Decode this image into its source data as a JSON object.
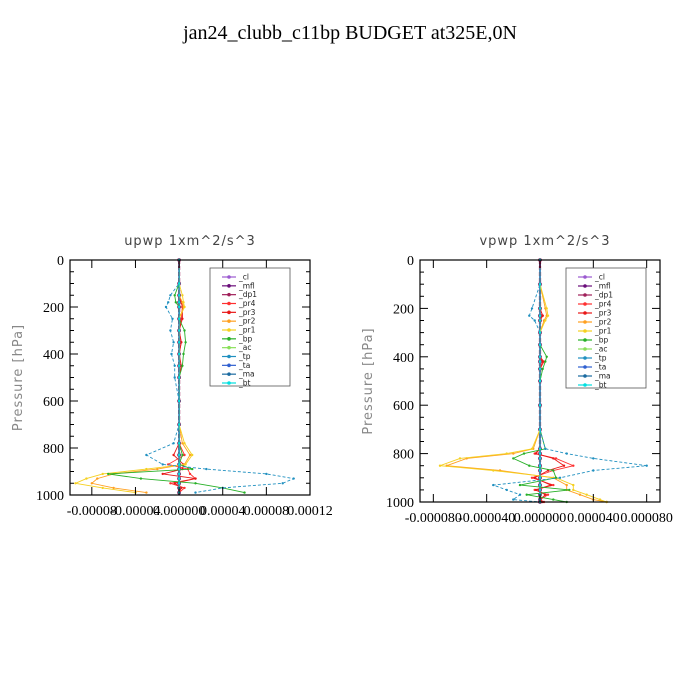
{
  "title": "jan24_clubb_c11bp  BUDGET at325E,0N",
  "legend": [
    {
      "name": "_cl",
      "color": "#9b59d0"
    },
    {
      "name": "_mfl",
      "color": "#6a0d7a"
    },
    {
      "name": "_dp1",
      "color": "#a0205a"
    },
    {
      "name": "_pr4",
      "color": "#ff3030"
    },
    {
      "name": "_pr3",
      "color": "#e81818"
    },
    {
      "name": "_pr2",
      "color": "#ffa020"
    },
    {
      "name": "_pr1",
      "color": "#f5d020"
    },
    {
      "name": "_bp",
      "color": "#27b027"
    },
    {
      "name": "_ac",
      "color": "#8ae05a"
    },
    {
      "name": "_tp",
      "color": "#2090c0"
    },
    {
      "name": "_ta",
      "color": "#3060d0"
    },
    {
      "name": "_ma",
      "color": "#1a6aa0"
    },
    {
      "name": "_bt",
      "color": "#00e0e0"
    }
  ],
  "chart_data": [
    {
      "type": "line",
      "title": "upwp   1xm^2/s^3",
      "xlabel": "",
      "ylabel": "Pressure [hPa]",
      "xlim": [
        -0.0001,
        0.00012
      ],
      "ylim": [
        1000,
        0
      ],
      "xtick_labels": [
        "-0.00008",
        "-0.00004",
        "0.000000",
        "0.00004",
        "0.00008",
        "0.00012"
      ],
      "xtick_values": [
        -8e-05,
        -4e-05,
        0,
        4e-05,
        8e-05,
        0.00012
      ],
      "ytick_values": [
        0,
        200,
        400,
        600,
        800,
        1000
      ],
      "y": [
        0,
        100,
        150,
        180,
        200,
        250,
        300,
        350,
        400,
        450,
        500,
        600,
        700,
        780,
        830,
        870,
        890,
        910,
        930,
        950,
        970,
        990
      ],
      "series": [
        {
          "name": "_cl",
          "values": [
            0,
            0,
            0,
            0,
            0,
            0,
            0,
            0,
            0,
            0,
            0,
            0,
            0,
            0,
            0,
            0,
            0,
            0,
            0,
            0,
            0,
            0
          ]
        },
        {
          "name": "_mfl",
          "values": [
            0,
            0,
            0,
            0,
            0,
            0,
            0,
            0,
            0,
            0,
            0,
            0,
            0,
            0,
            0,
            0,
            0,
            0,
            0,
            0,
            0,
            0
          ]
        },
        {
          "name": "_dp1",
          "values": [
            0,
            0,
            0,
            0,
            0,
            0,
            0,
            0,
            0,
            0,
            0,
            0,
            0,
            0,
            0,
            0,
            0,
            0,
            0,
            0,
            0,
            0
          ]
        },
        {
          "name": "_pr4",
          "values": [
            0,
            0,
            0,
            2e-06,
            3e-06,
            2e-06,
            0,
            2e-06,
            0,
            0,
            0,
            0,
            0,
            0,
            5e-06,
            -1e-05,
            8e-06,
            1e-05,
            1.5e-05,
            -8e-06,
            5e-06,
            0
          ]
        },
        {
          "name": "_pr3",
          "values": [
            0,
            0,
            0,
            2e-06,
            3e-06,
            3e-06,
            0,
            2e-06,
            0,
            2e-06,
            0,
            0,
            0,
            0,
            -5e-06,
            4e-06,
            3e-06,
            -1.5e-05,
            1.5e-05,
            -4e-06,
            2e-06,
            0
          ]
        },
        {
          "name": "_pr2",
          "values": [
            0,
            0,
            0,
            3e-06,
            4e-06,
            0,
            0,
            0,
            0,
            0,
            0,
            0,
            0,
            3e-06,
            1e-05,
            5e-06,
            -2e-05,
            -6e-05,
            -7.5e-05,
            -8e-05,
            -6e-05,
            -3e-05
          ]
        },
        {
          "name": "_pr1",
          "values": [
            0,
            0,
            3e-06,
            4e-06,
            5e-06,
            0,
            0,
            0,
            0,
            0,
            0,
            0,
            0,
            5e-06,
            1.2e-05,
            6e-06,
            -3e-05,
            -7e-05,
            -8.5e-05,
            -9.5e-05,
            -7e-05,
            -4e-05
          ]
        },
        {
          "name": "_bp",
          "values": [
            0,
            0,
            -4e-06,
            -3e-06,
            0,
            0,
            5e-06,
            6e-06,
            4e-06,
            3e-06,
            0,
            0,
            0,
            0,
            3e-06,
            0,
            1.2e-05,
            -6.5e-05,
            -3.5e-05,
            1.5e-05,
            4e-05,
            6e-05
          ]
        },
        {
          "name": "_ac",
          "values": [
            0,
            0,
            0,
            0,
            0,
            0,
            0,
            0,
            0,
            0,
            0,
            0,
            0,
            0,
            0,
            0,
            0,
            0,
            0,
            0,
            0,
            0
          ]
        },
        {
          "name": "_tp",
          "values": [
            0,
            0,
            -8e-06,
            -1e-05,
            -1.2e-05,
            -6e-06,
            -8e-06,
            -5e-06,
            -7e-06,
            -4e-06,
            -4e-06,
            0,
            0,
            -5e-06,
            -3e-05,
            -1.5e-05,
            2.5e-05,
            8e-05,
            0.000105,
            9.5e-05,
            4e-05,
            1.5e-05
          ]
        },
        {
          "name": "_ta",
          "values": [
            0,
            0,
            0,
            0,
            0,
            0,
            0,
            0,
            0,
            0,
            0,
            0,
            0,
            0,
            0,
            0,
            0,
            0,
            0,
            0,
            0,
            0
          ]
        },
        {
          "name": "_ma",
          "values": [
            0,
            0,
            0,
            0,
            0,
            0,
            0,
            0,
            0,
            0,
            0,
            0,
            0,
            0,
            0,
            0,
            0,
            0,
            0,
            0,
            0,
            0
          ]
        },
        {
          "name": "_bt",
          "values": [
            0,
            0,
            0,
            0,
            0,
            0,
            0,
            0,
            0,
            0,
            0,
            0,
            0,
            0,
            0,
            0,
            0,
            0,
            0,
            0,
            0,
            0
          ]
        }
      ]
    },
    {
      "type": "line",
      "title": "vpwp   1xm^2/s^3",
      "xlabel": "",
      "ylabel": "Pressure [hPa]",
      "xlim": [
        -9e-05,
        9e-05
      ],
      "ylim": [
        1000,
        0
      ],
      "xtick_labels": [
        "-0.000080",
        "-0.000040",
        "0.000000",
        "0.000040",
        "0.000080"
      ],
      "xtick_values": [
        -8e-05,
        -4e-05,
        0,
        4e-05,
        8e-05
      ],
      "ytick_values": [
        0,
        200,
        400,
        600,
        800,
        1000
      ],
      "y": [
        0,
        100,
        200,
        230,
        250,
        300,
        350,
        400,
        420,
        450,
        500,
        600,
        700,
        780,
        800,
        820,
        850,
        870,
        900,
        930,
        950,
        970,
        990,
        1000
      ],
      "series": [
        {
          "name": "_cl",
          "values": [
            0,
            0,
            0,
            0,
            0,
            0,
            0,
            0,
            0,
            0,
            0,
            0,
            0,
            0,
            0,
            0,
            0,
            0,
            0,
            0,
            0,
            0,
            0,
            0
          ]
        },
        {
          "name": "_mfl",
          "values": [
            0,
            0,
            0,
            0,
            0,
            0,
            0,
            0,
            0,
            0,
            0,
            0,
            0,
            0,
            0,
            0,
            0,
            0,
            0,
            0,
            0,
            0,
            0,
            0
          ]
        },
        {
          "name": "_dp1",
          "values": [
            0,
            0,
            0,
            0,
            0,
            0,
            0,
            0,
            0,
            0,
            0,
            0,
            0,
            0,
            0,
            0,
            0,
            0,
            0,
            0,
            0,
            0,
            0,
            0
          ]
        },
        {
          "name": "_pr4",
          "values": [
            0,
            0,
            0,
            2e-06,
            0,
            0,
            0,
            0,
            3e-06,
            0,
            0,
            0,
            0,
            0,
            -4e-06,
            1.2e-05,
            2.5e-05,
            1e-05,
            -6e-06,
            1e-05,
            -4e-06,
            6e-06,
            0,
            3e-06
          ]
        },
        {
          "name": "_pr3",
          "values": [
            0,
            0,
            0,
            2e-06,
            0,
            0,
            0,
            0,
            2e-06,
            0,
            0,
            0,
            0,
            0,
            -3e-06,
            1e-05,
            1.8e-05,
            6e-06,
            -4e-06,
            8e-06,
            -3e-06,
            4e-06,
            0,
            2e-06
          ]
        },
        {
          "name": "_pr2",
          "values": [
            0,
            0,
            4e-06,
            5e-06,
            3e-06,
            0,
            0,
            0,
            0,
            0,
            0,
            0,
            0,
            -5e-06,
            -2e-05,
            -5.5e-05,
            -7e-05,
            -3e-05,
            1e-05,
            2e-05,
            2e-05,
            3e-05,
            4e-05,
            5e-05
          ]
        },
        {
          "name": "_pr1",
          "values": [
            0,
            0,
            5e-06,
            6e-06,
            4e-06,
            0,
            0,
            0,
            0,
            0,
            0,
            0,
            0,
            -6e-06,
            -2.5e-05,
            -6e-05,
            -7.5e-05,
            -3.5e-05,
            1.2e-05,
            2.5e-05,
            2.5e-05,
            3.5e-05,
            4.5e-05,
            5e-05
          ]
        },
        {
          "name": "_bp",
          "values": [
            0,
            0,
            0,
            0,
            0,
            0,
            0,
            5e-06,
            4e-06,
            2e-06,
            0,
            0,
            0,
            4e-06,
            -1.2e-05,
            -2e-05,
            -8e-06,
            1e-05,
            1.2e-05,
            -1.5e-05,
            2.2e-05,
            -1e-05,
            1e-05,
            2e-05
          ]
        },
        {
          "name": "_ac",
          "values": [
            0,
            0,
            0,
            0,
            0,
            0,
            0,
            0,
            0,
            0,
            0,
            0,
            0,
            0,
            0,
            0,
            0,
            0,
            0,
            0,
            0,
            0,
            0,
            0
          ]
        },
        {
          "name": "_tp",
          "values": [
            0,
            0,
            -6e-06,
            -8e-06,
            -4e-06,
            0,
            0,
            0,
            0,
            0,
            0,
            0,
            0,
            4e-06,
            2e-05,
            4e-05,
            8e-05,
            4e-05,
            1.5e-05,
            -3.5e-05,
            -2.5e-05,
            -1.5e-05,
            -2e-05,
            0
          ]
        },
        {
          "name": "_ta",
          "values": [
            0,
            0,
            0,
            0,
            0,
            0,
            0,
            0,
            0,
            0,
            0,
            0,
            0,
            0,
            0,
            0,
            0,
            0,
            0,
            0,
            0,
            0,
            0,
            0
          ]
        },
        {
          "name": "_ma",
          "values": [
            0,
            0,
            0,
            0,
            0,
            0,
            0,
            0,
            0,
            0,
            0,
            0,
            0,
            0,
            0,
            0,
            0,
            0,
            0,
            0,
            0,
            0,
            0,
            0
          ]
        },
        {
          "name": "_bt",
          "values": [
            0,
            0,
            0,
            0,
            0,
            0,
            0,
            0,
            0,
            0,
            0,
            0,
            0,
            0,
            0,
            0,
            0,
            0,
            0,
            0,
            0,
            0,
            0,
            0
          ]
        }
      ]
    }
  ]
}
